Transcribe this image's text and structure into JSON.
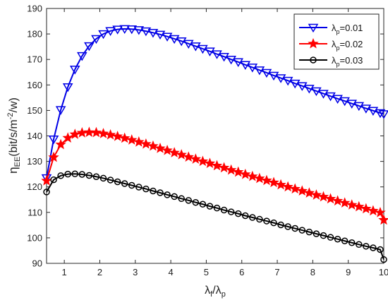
{
  "chart_data": {
    "type": "line",
    "xlabel": {
      "main": "λ",
      "sub1": "f",
      "sep": "/λ",
      "sub2": "p"
    },
    "ylabel": {
      "main": "η",
      "sub": "EE",
      "pre": "(bit/s/m",
      "sup": "-2",
      "post": "/w)"
    },
    "xlim": [
      0.5,
      10
    ],
    "ylim": [
      90,
      190
    ],
    "xticks": [
      1,
      2,
      3,
      4,
      5,
      6,
      7,
      8,
      9,
      10
    ],
    "yticks": [
      90,
      100,
      110,
      120,
      130,
      140,
      150,
      160,
      170,
      180,
      190
    ],
    "grid": false,
    "legend_position": "top-right",
    "x": [
      0.5,
      0.7,
      0.9,
      1.1,
      1.3,
      1.5,
      1.7,
      1.9,
      2.1,
      2.3,
      2.5,
      2.7,
      2.9,
      3.1,
      3.3,
      3.5,
      3.7,
      3.9,
      4.1,
      4.3,
      4.5,
      4.7,
      4.9,
      5.1,
      5.3,
      5.5,
      5.7,
      5.9,
      6.1,
      6.3,
      6.5,
      6.7,
      6.9,
      7.1,
      7.3,
      7.5,
      7.7,
      7.9,
      8.1,
      8.3,
      8.5,
      8.7,
      8.9,
      9.1,
      9.3,
      9.5,
      9.7,
      9.9,
      10.0
    ],
    "series": [
      {
        "name": {
          "main": "λ",
          "sub": "p",
          "value": "=0.01"
        },
        "color": "#0000e6",
        "marker": "triangle-down",
        "values": [
          123.5,
          138.7,
          150.2,
          159.2,
          166.1,
          171.4,
          175.3,
          178.1,
          180.0,
          181.2,
          181.8,
          182.0,
          181.9,
          181.6,
          181.1,
          180.5,
          179.8,
          179.0,
          178.1,
          177.2,
          176.2,
          175.2,
          174.2,
          173.2,
          172.1,
          171.1,
          170.0,
          169.0,
          167.9,
          166.9,
          165.8,
          164.8,
          163.7,
          162.7,
          161.7,
          160.6,
          159.6,
          158.6,
          157.6,
          156.6,
          155.6,
          154.6,
          153.7,
          152.7,
          151.8,
          150.8,
          149.9,
          149.0,
          148.6
        ]
      },
      {
        "name": {
          "main": "λ",
          "sub": "p",
          "value": "=0.02"
        },
        "color": "#ff0000",
        "marker": "star",
        "values": [
          122.4,
          131.6,
          136.6,
          139.2,
          140.6,
          141.2,
          141.4,
          141.3,
          140.9,
          140.4,
          139.8,
          139.1,
          138.4,
          137.6,
          136.8,
          136.0,
          135.1,
          134.3,
          133.4,
          132.6,
          131.7,
          130.9,
          130.0,
          129.2,
          128.3,
          127.5,
          126.6,
          125.8,
          124.9,
          124.1,
          123.3,
          122.5,
          121.7,
          120.8,
          120.0,
          119.2,
          118.4,
          117.6,
          116.8,
          116.1,
          115.3,
          114.5,
          113.7,
          112.9,
          112.2,
          111.4,
          110.6,
          109.9,
          107.0
        ]
      },
      {
        "name": {
          "main": "λ",
          "sub": "p",
          "value": "=0.03"
        },
        "color": "#000000",
        "marker": "circle",
        "values": [
          118.0,
          122.8,
          124.4,
          125.0,
          125.1,
          124.9,
          124.5,
          124.0,
          123.4,
          122.7,
          122.0,
          121.3,
          120.6,
          119.9,
          119.2,
          118.4,
          117.7,
          116.9,
          116.2,
          115.4,
          114.7,
          113.9,
          113.2,
          112.4,
          111.7,
          110.9,
          110.2,
          109.5,
          108.7,
          108.0,
          107.3,
          106.6,
          105.9,
          105.1,
          104.4,
          103.7,
          103.0,
          102.3,
          101.6,
          100.9,
          100.2,
          99.5,
          98.8,
          98.1,
          97.4,
          96.7,
          96.1,
          95.4,
          91.5
        ]
      }
    ]
  }
}
